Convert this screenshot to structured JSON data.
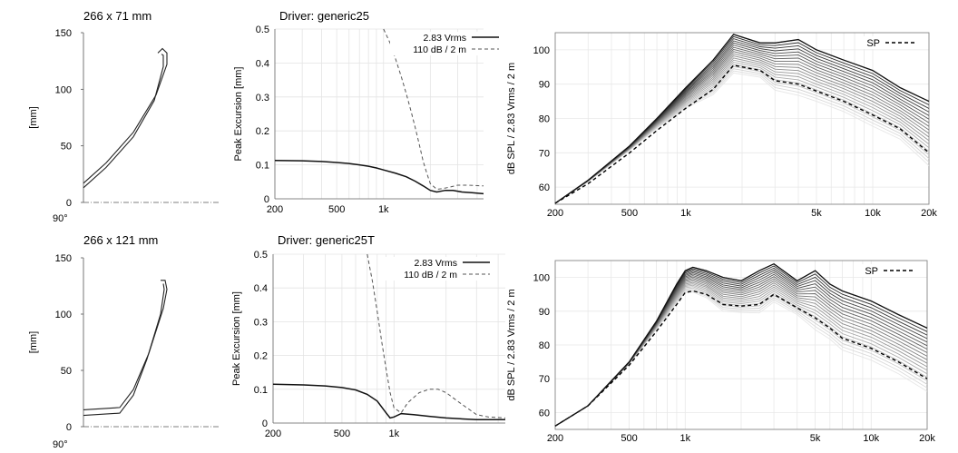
{
  "panels": [
    {
      "profile": {
        "title": "266 x 71 mm",
        "ylabel": "[mm]",
        "yticks": [
          "150",
          "100",
          "50",
          "0"
        ],
        "angle_label": "90°"
      },
      "excursion": {
        "title": "Driver: generic25",
        "ylabel": "Peak Excursion [mm]",
        "yticks": [
          "0.5",
          "0.4",
          "0.3",
          "0.2",
          "0.1",
          "0"
        ],
        "xticks": [
          "200",
          "500",
          "1k"
        ],
        "legend": [
          "2.83 Vrms",
          "110 dB / 2 m"
        ]
      },
      "spl": {
        "ylabel": "dB SPL / 2.83 Vrms / 2 m",
        "yticks": [
          "100",
          "90",
          "80",
          "70",
          "60"
        ],
        "xticks": [
          "200",
          "500",
          "1k",
          "5k",
          "10k",
          "20k"
        ],
        "legend": "SP"
      }
    },
    {
      "profile": {
        "title": "266 x 121 mm",
        "ylabel": "[mm]",
        "yticks": [
          "150",
          "100",
          "50",
          "0"
        ],
        "angle_label": "90°"
      },
      "excursion": {
        "title": "Driver: generic25T",
        "ylabel": "Peak Excursion [mm]",
        "yticks": [
          "0.5",
          "0.4",
          "0.3",
          "0.2",
          "0.1",
          "0"
        ],
        "xticks": [
          "200",
          "500",
          "1k"
        ],
        "legend": [
          "2.83 Vrms",
          "110 dB / 2 m"
        ]
      },
      "spl": {
        "ylabel": "dB SPL / 2.83 Vrms / 2 m",
        "yticks": [
          "100",
          "90",
          "80",
          "70",
          "60"
        ],
        "xticks": [
          "200",
          "500",
          "1k",
          "5k",
          "10k",
          "20k"
        ],
        "legend": "SP"
      }
    }
  ],
  "chart_data": [
    {
      "type": "line",
      "title": "266 x 71 mm",
      "ylabel": "[mm]",
      "ylim": [
        0,
        150
      ],
      "series": [
        {
          "values": [
            [
              0,
              17
            ],
            [
              25,
              35
            ],
            [
              55,
              62
            ],
            [
              80,
              95
            ],
            [
              92,
              122
            ],
            [
              92,
              132
            ],
            [
              87,
              136
            ],
            [
              82,
              132
            ]
          ]
        },
        {
          "values": [
            [
              0,
              13
            ],
            [
              25,
              31
            ],
            [
              55,
              58
            ],
            [
              78,
              90
            ],
            [
              88,
              120
            ],
            [
              88,
              130
            ],
            [
              86,
              131
            ]
          ]
        }
      ]
    },
    {
      "type": "line",
      "title": "Driver: generic25",
      "ylabel": "Peak Excursion [mm]",
      "xscale": "log",
      "xlim": [
        200,
        4400
      ],
      "ylim": [
        0,
        0.5
      ],
      "series": [
        {
          "name": "2.83 Vrms",
          "x": [
            200,
            300,
            400,
            500,
            600,
            700,
            800,
            900,
            1000,
            1200,
            1400,
            1600,
            1800,
            2000,
            2200,
            2500,
            2800,
            3200,
            3700,
            4400
          ],
          "values": [
            0.113,
            0.112,
            0.11,
            0.107,
            0.104,
            0.1,
            0.096,
            0.091,
            0.085,
            0.075,
            0.065,
            0.052,
            0.038,
            0.025,
            0.02,
            0.025,
            0.025,
            0.02,
            0.018,
            0.015
          ]
        },
        {
          "name": "110 dB / 2 m",
          "x": [
            1000,
            1100,
            1200,
            1300,
            1400,
            1500,
            1600,
            1700,
            1800,
            1900,
            2000,
            2200,
            2400,
            2700,
            3000,
            3500,
            4400
          ],
          "values": [
            0.5,
            0.46,
            0.41,
            0.36,
            0.31,
            0.26,
            0.21,
            0.16,
            0.11,
            0.075,
            0.045,
            0.028,
            0.03,
            0.035,
            0.04,
            0.04,
            0.038
          ]
        }
      ]
    },
    {
      "type": "line",
      "ylabel": "dB SPL / 2.83 Vrms / 2 m",
      "xscale": "log",
      "xlim": [
        200,
        20000
      ],
      "ylim": [
        55,
        105
      ],
      "series": [
        {
          "name": "SP",
          "x": [
            200,
            300,
            500,
            700,
            1000,
            1400,
            1800,
            2500,
            3000,
            4000,
            5000,
            7000,
            10000,
            14000,
            20000
          ],
          "values": [
            55.3,
            61,
            70,
            76.5,
            83,
            88.5,
            95.5,
            94,
            91,
            90,
            88,
            85,
            81,
            77,
            70
          ]
        },
        {
          "x": [
            200,
            300,
            500,
            700,
            1000,
            1400,
            1800,
            2500,
            3000,
            4000,
            5000,
            7000,
            10000,
            14000,
            20000
          ],
          "values": [
            55.3,
            62,
            72,
            80,
            89,
            97,
            104.5,
            102,
            102,
            103,
            100,
            97,
            94,
            89,
            85
          ]
        }
      ]
    },
    {
      "type": "line",
      "title": "266 x 121 mm",
      "ylabel": "[mm]",
      "ylim": [
        0,
        150
      ],
      "series": [
        {
          "values": [
            [
              0,
              15
            ],
            [
              40,
              17
            ],
            [
              55,
              33
            ],
            [
              72,
              65
            ],
            [
              88,
              105
            ],
            [
              92,
              122
            ],
            [
              90,
              130
            ],
            [
              85,
              130
            ]
          ]
        },
        {
          "values": [
            [
              0,
              10
            ],
            [
              40,
              12
            ],
            [
              55,
              28
            ],
            [
              70,
              60
            ],
            [
              85,
              100
            ],
            [
              89,
              122
            ],
            [
              88,
              127
            ]
          ]
        }
      ]
    },
    {
      "type": "line",
      "title": "Driver: generic25T",
      "ylabel": "Peak Excursion [mm]",
      "xscale": "log",
      "xlim": [
        200,
        4400
      ],
      "ylim": [
        0,
        0.5
      ],
      "series": [
        {
          "name": "2.83 Vrms",
          "x": [
            200,
            300,
            400,
            500,
            600,
            700,
            800,
            900,
            950,
            1000,
            1100,
            1300,
            1600,
            2000,
            2500,
            3000,
            3500,
            4400
          ],
          "values": [
            0.115,
            0.113,
            0.11,
            0.105,
            0.098,
            0.085,
            0.065,
            0.03,
            0.015,
            0.018,
            0.028,
            0.025,
            0.02,
            0.015,
            0.012,
            0.01,
            0.01,
            0.01
          ]
        },
        {
          "name": "110 dB / 2 m",
          "x": [
            700,
            750,
            800,
            850,
            900,
            950,
            1000,
            1100,
            1200,
            1400,
            1600,
            1800,
            2000,
            2400,
            3000,
            3500,
            4400
          ],
          "values": [
            0.5,
            0.42,
            0.33,
            0.24,
            0.16,
            0.09,
            0.045,
            0.03,
            0.06,
            0.09,
            0.1,
            0.1,
            0.09,
            0.06,
            0.025,
            0.018,
            0.015
          ]
        }
      ]
    },
    {
      "type": "line",
      "ylabel": "dB SPL / 2.83 Vrms / 2 m",
      "xscale": "log",
      "xlim": [
        200,
        20000
      ],
      "ylim": [
        55,
        105
      ],
      "series": [
        {
          "name": "SP",
          "x": [
            200,
            300,
            500,
            700,
            900,
            1000,
            1100,
            1300,
            1600,
            2000,
            2500,
            3000,
            4000,
            5000,
            6000,
            7000,
            10000,
            14000,
            20000
          ],
          "values": [
            56,
            62,
            74,
            84,
            92,
            95.5,
            96,
            95,
            92,
            91.5,
            92,
            95,
            91,
            88,
            85,
            82,
            79,
            75,
            70
          ]
        },
        {
          "x": [
            200,
            300,
            500,
            700,
            900,
            1000,
            1100,
            1300,
            1600,
            2000,
            2500,
            3000,
            4000,
            5000,
            6000,
            7000,
            10000,
            14000,
            20000
          ],
          "values": [
            56,
            62,
            75,
            87,
            98,
            102,
            103,
            102,
            100,
            99,
            102,
            104,
            99,
            102,
            98,
            96,
            93,
            89,
            85
          ]
        }
      ]
    }
  ]
}
